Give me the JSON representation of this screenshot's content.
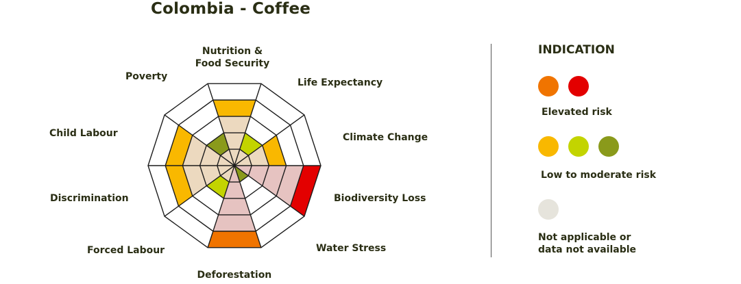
{
  "title": "Colombia - Coffee",
  "chart_data": {
    "type": "radar",
    "title": "Colombia - Coffee",
    "rings": 5,
    "axes": [
      {
        "label": "Nutrition & Food Security",
        "level": 4,
        "color": "#f9b800",
        "risk": "low-to-moderate"
      },
      {
        "label": "Life Expectancy",
        "level": 2,
        "color": "#c3d400",
        "risk": "low-to-moderate"
      },
      {
        "label": "Climate Change",
        "level": 3,
        "color": "#f9b800",
        "risk": "low-to-moderate"
      },
      {
        "label": "Biodiversity Loss",
        "level": 5,
        "color": "#e30000",
        "risk": "elevated"
      },
      {
        "label": "Water Stress",
        "level": 1,
        "color": "#8a9a1b",
        "risk": "low-to-moderate"
      },
      {
        "label": "Deforestation",
        "level": 5,
        "color": "#f07400",
        "risk": "elevated"
      },
      {
        "label": "Forced Labour",
        "level": 2,
        "color": "#c3d400",
        "risk": "low-to-moderate"
      },
      {
        "label": "Discrimination",
        "level": 4,
        "color": "#f9b800",
        "risk": "low-to-moderate"
      },
      {
        "label": "Child Labour",
        "level": 4,
        "color": "#f9b800",
        "risk": "low-to-moderate"
      },
      {
        "label": "Poverty",
        "level": 2,
        "color": "#8a9a1b",
        "risk": "low-to-moderate"
      }
    ],
    "fill_colors": {
      "elevated_bg": "#e6c3c1",
      "default_bg": "#ecd9bf"
    }
  },
  "legend": {
    "title": "INDICATION",
    "groups": [
      {
        "label": "Elevated risk",
        "colors": [
          "#f07400",
          "#e30000"
        ]
      },
      {
        "label": "Low to moderate risk",
        "colors": [
          "#f9b800",
          "#c3d400",
          "#8a9a1b"
        ]
      },
      {
        "label": "Not applicable or data not available",
        "colors": [
          "#e6e4dc"
        ]
      }
    ]
  }
}
